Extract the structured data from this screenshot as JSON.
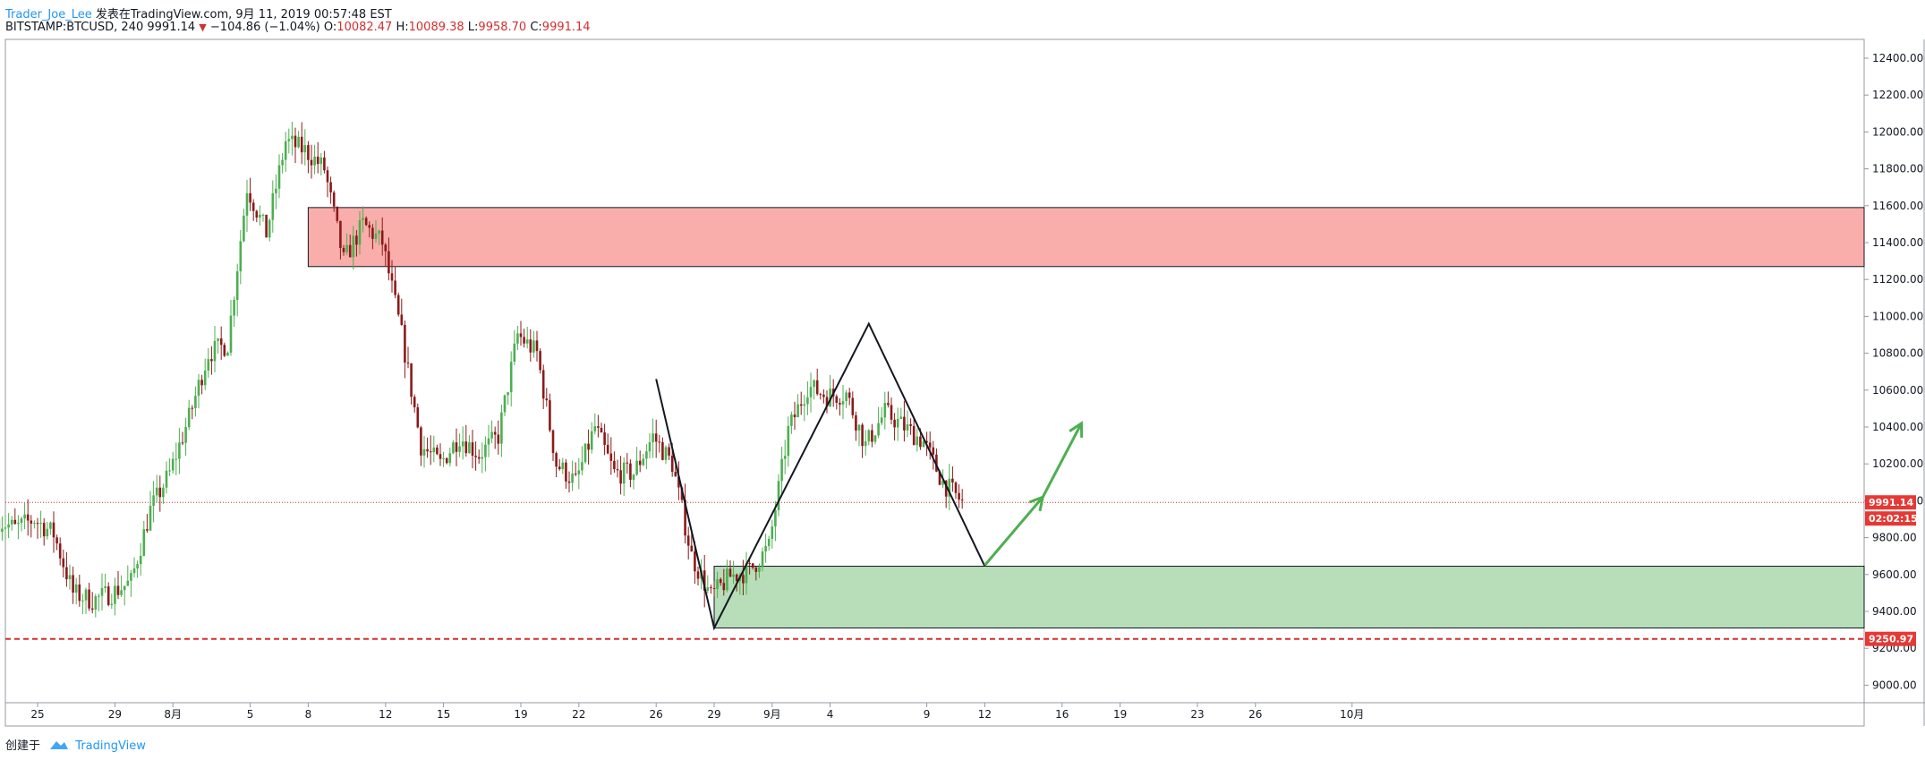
{
  "header": {
    "author": "Trader_Joe_Lee",
    "published_prefix": "发表在TradingView.com, 9月 11, 2019 00:57:48 EST",
    "symbol": "BITSTAMP:BTCUSD, 240",
    "price": "9991.14",
    "change": "−104.86 (−1.04%)",
    "o_label": "O:",
    "o_value": "10082.47",
    "h_label": "H:",
    "h_value": "10089.38",
    "l_label": "L:",
    "l_value": "9958.70",
    "c_label": "C:",
    "c_value": "9991.14"
  },
  "footer": {
    "created_with": "创建于",
    "brand": "TradingView"
  },
  "colors": {
    "up": "#4caf50",
    "down": "#8b1a1a",
    "resistance": "#f9aeab",
    "support": "#b7deb8",
    "arrow": "#4caf50",
    "price_line": "#d32f2f"
  },
  "chart_data": {
    "type": "candlestick",
    "y_range": [
      8920,
      12530
    ],
    "y_ticks": [
      9000,
      9200,
      9400,
      9600,
      9800,
      10000,
      10200,
      10400,
      10600,
      10800,
      11000,
      11200,
      11400,
      11600,
      11800,
      12000,
      12200,
      12400
    ],
    "x_tick_labels": [
      "25",
      "29",
      "8月",
      "5",
      "8",
      "12",
      "15",
      "19",
      "22",
      "26",
      "29",
      "9月",
      "4",
      "9",
      "12",
      "16",
      "19",
      "23",
      "26",
      "10月"
    ],
    "x_tick_dates": [
      "2019-07-25",
      "2019-07-29",
      "2019-08-01",
      "2019-08-05",
      "2019-08-08",
      "2019-08-12",
      "2019-08-15",
      "2019-08-19",
      "2019-08-22",
      "2019-08-26",
      "2019-08-29",
      "2019-09-01",
      "2019-09-04",
      "2019-09-09",
      "2019-09-12",
      "2019-09-16",
      "2019-09-19",
      "2019-09-23",
      "2019-09-26",
      "2019-10-01"
    ],
    "price_series_daily_close": [
      {
        "date": "2019-07-23",
        "close": 9900
      },
      {
        "date": "2019-07-24",
        "close": 9850
      },
      {
        "date": "2019-07-25",
        "close": 9900
      },
      {
        "date": "2019-07-26",
        "close": 9820
      },
      {
        "date": "2019-07-27",
        "close": 9500
      },
      {
        "date": "2019-07-28",
        "close": 9460
      },
      {
        "date": "2019-07-29",
        "close": 9500
      },
      {
        "date": "2019-07-30",
        "close": 9560
      },
      {
        "date": "2019-07-31",
        "close": 9950
      },
      {
        "date": "2019-08-01",
        "close": 10150
      },
      {
        "date": "2019-08-02",
        "close": 10450
      },
      {
        "date": "2019-08-03",
        "close": 10800
      },
      {
        "date": "2019-08-04",
        "close": 10850
      },
      {
        "date": "2019-08-05",
        "close": 11700
      },
      {
        "date": "2019-08-06",
        "close": 11450
      },
      {
        "date": "2019-08-07",
        "close": 11950
      },
      {
        "date": "2019-08-08",
        "close": 11900
      },
      {
        "date": "2019-08-09",
        "close": 11800
      },
      {
        "date": "2019-08-10",
        "close": 11300
      },
      {
        "date": "2019-08-11",
        "close": 11500
      },
      {
        "date": "2019-08-12",
        "close": 11400
      },
      {
        "date": "2019-08-13",
        "close": 10900
      },
      {
        "date": "2019-08-14",
        "close": 10300
      },
      {
        "date": "2019-08-15",
        "close": 10200
      },
      {
        "date": "2019-08-16",
        "close": 10350
      },
      {
        "date": "2019-08-17",
        "close": 10250
      },
      {
        "date": "2019-08-18",
        "close": 10350
      },
      {
        "date": "2019-08-19",
        "close": 10900
      },
      {
        "date": "2019-08-20",
        "close": 10800
      },
      {
        "date": "2019-08-21",
        "close": 10200
      },
      {
        "date": "2019-08-22",
        "close": 10100
      },
      {
        "date": "2019-08-23",
        "close": 10400
      },
      {
        "date": "2019-08-24",
        "close": 10150
      },
      {
        "date": "2019-08-25",
        "close": 10150
      },
      {
        "date": "2019-08-26",
        "close": 10350
      },
      {
        "date": "2019-08-27",
        "close": 10200
      },
      {
        "date": "2019-08-28",
        "close": 9700
      },
      {
        "date": "2019-08-29",
        "close": 9480
      },
      {
        "date": "2019-08-30",
        "close": 9590
      },
      {
        "date": "2019-08-31",
        "close": 9620
      },
      {
        "date": "2019-09-01",
        "close": 9750
      },
      {
        "date": "2019-09-02",
        "close": 10380
      },
      {
        "date": "2019-09-03",
        "close": 10620
      },
      {
        "date": "2019-09-04",
        "close": 10570
      },
      {
        "date": "2019-09-05",
        "close": 10580
      },
      {
        "date": "2019-09-06",
        "close": 10300
      },
      {
        "date": "2019-09-07",
        "close": 10480
      },
      {
        "date": "2019-09-08",
        "close": 10400
      },
      {
        "date": "2019-09-09",
        "close": 10320
      },
      {
        "date": "2019-09-10",
        "close": 10100
      },
      {
        "date": "2019-09-11",
        "close": 9991.14
      }
    ],
    "current_price": 9991.14,
    "current_price_label": "9991.14",
    "countdown_label": "02:02:15",
    "support_line_price": 9250.97,
    "support_line_label": "9250.97",
    "zones": [
      {
        "name": "resistance",
        "from_date": "2019-08-08",
        "price_low": 11270,
        "price_high": 11590
      },
      {
        "name": "support",
        "from_date": "2019-08-29",
        "price_low": 9310,
        "price_high": 9645
      }
    ],
    "pattern_line": [
      {
        "date": "2019-08-26",
        "price": 10660
      },
      {
        "date": "2019-08-29",
        "price": 9310
      },
      {
        "date": "2019-09-06",
        "price": 10960
      },
      {
        "date": "2019-09-12",
        "price": 9645
      }
    ],
    "projection_arrows": [
      {
        "from": {
          "date": "2019-09-12",
          "price": 9650
        },
        "to": {
          "date": "2019-09-15",
          "price": 10020
        }
      },
      {
        "from": {
          "date": "2019-09-15",
          "price": 10020
        },
        "to": {
          "date": "2019-09-17",
          "price": 10420
        }
      }
    ]
  }
}
